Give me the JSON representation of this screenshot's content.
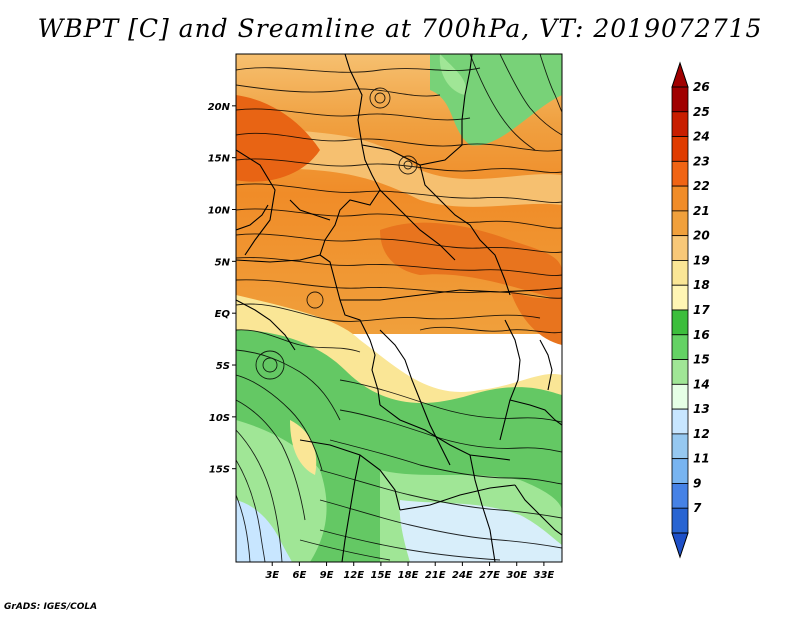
{
  "title": "WBPT [C] and Sreamline at 700hPa, VT: 2019072715",
  "credit": "GrADS: IGES/COLA",
  "map": {
    "lon_range": [
      -1,
      35
    ],
    "lat_range": [
      -24,
      25
    ],
    "x_ticks": [
      {
        "value": 3,
        "label": "3E"
      },
      {
        "value": 6,
        "label": "6E"
      },
      {
        "value": 9,
        "label": "9E"
      },
      {
        "value": 12,
        "label": "12E"
      },
      {
        "value": 15,
        "label": "15E"
      },
      {
        "value": 18,
        "label": "18E"
      },
      {
        "value": 21,
        "label": "21E"
      },
      {
        "value": 24,
        "label": "24E"
      },
      {
        "value": 27,
        "label": "27E"
      },
      {
        "value": 30,
        "label": "30E"
      },
      {
        "value": 33,
        "label": "33E"
      }
    ],
    "y_ticks": [
      {
        "value": 20,
        "label": "20N"
      },
      {
        "value": 15,
        "label": "15N"
      },
      {
        "value": 10,
        "label": "10N"
      },
      {
        "value": 5,
        "label": "5N"
      },
      {
        "value": 0,
        "label": "EQ"
      },
      {
        "value": -5,
        "label": "5S"
      },
      {
        "value": -10,
        "label": "10S"
      },
      {
        "value": -15,
        "label": "15S"
      }
    ]
  },
  "colorbar": {
    "labels": [
      "26",
      "25",
      "24",
      "23",
      "22",
      "21",
      "20",
      "19",
      "18",
      "17",
      "16",
      "15",
      "14",
      "13",
      "12",
      "11",
      "9",
      "7"
    ],
    "colors": [
      "#a00000",
      "#c81e00",
      "#e03c00",
      "#f06414",
      "#f08c28",
      "#f0a03c",
      "#f8c878",
      "#fae696",
      "#fff5b4",
      "#3cbe3c",
      "#64d264",
      "#a0e696",
      "#e6ffe6",
      "#c8e6ff",
      "#96c8f0",
      "#78b4f0",
      "#4682e6",
      "#2864d2"
    ]
  }
}
